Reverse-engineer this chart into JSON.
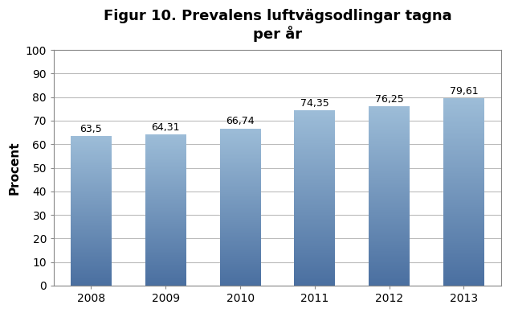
{
  "title": "Figur 10. Prevalens luftvägsodlingar tagna\nper år",
  "ylabel": "Procent",
  "categories": [
    "2008",
    "2009",
    "2010",
    "2011",
    "2012",
    "2013"
  ],
  "values": [
    63.5,
    64.31,
    66.74,
    74.35,
    76.25,
    79.61
  ],
  "labels": [
    "63,5",
    "64,31",
    "66,74",
    "74,35",
    "76,25",
    "79,61"
  ],
  "bar_color_top": "#9dbdd8",
  "bar_color_bottom": "#4a6fa0",
  "ylim": [
    0,
    100
  ],
  "yticks": [
    0,
    10,
    20,
    30,
    40,
    50,
    60,
    70,
    80,
    90,
    100
  ],
  "background_color": "#ffffff",
  "plot_bg_color": "#ffffff",
  "grid_color": "#bbbbbb",
  "border_color": "#888888",
  "title_fontsize": 13,
  "axis_label_fontsize": 11,
  "tick_fontsize": 10,
  "bar_label_fontsize": 9,
  "bar_width": 0.55
}
